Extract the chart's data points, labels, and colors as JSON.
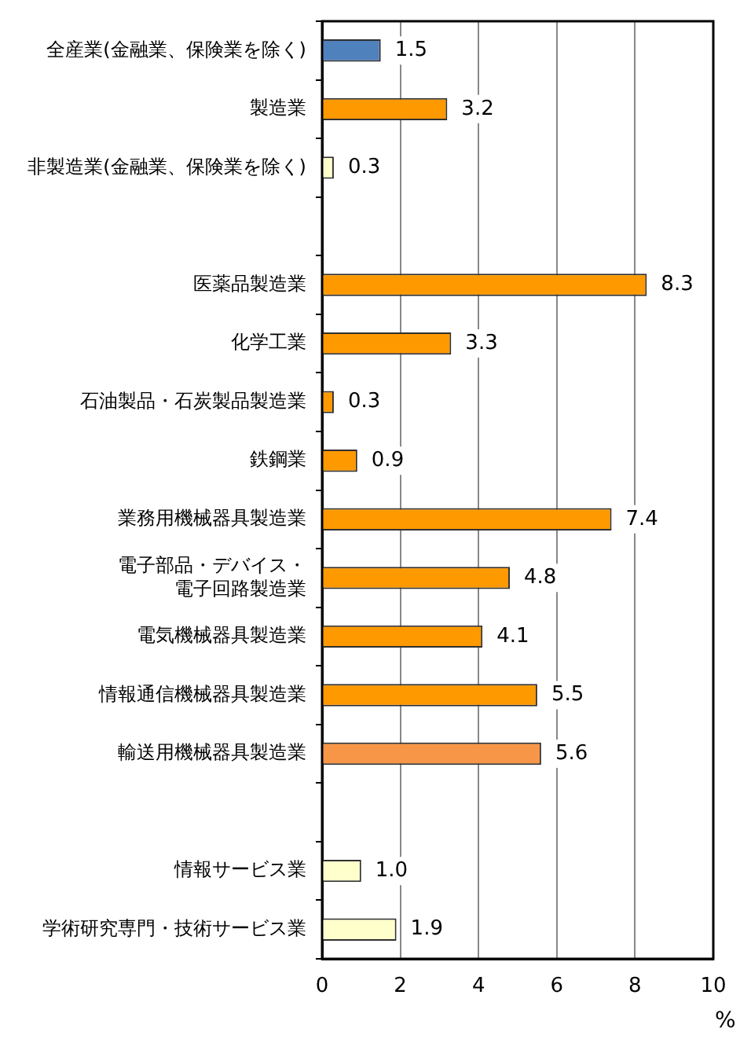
{
  "chart_data": {
    "type": "bar",
    "orientation": "horizontal",
    "categories": [
      "全産業(金融業、保険業を除く)",
      "製造業",
      "非製造業(金融業、保険業を除く)",
      null,
      "医薬品製造業",
      "化学工業",
      "石油製品・石炭製品製造業",
      "鉄鋼業",
      "業務用機械器具製造業",
      "電子部品・デバイス・電子回路製造業",
      "電気機械器具製造業",
      "情報通信機械器具製造業",
      "輸送用機械器具製造業",
      null,
      "情報サービス業",
      "学術研究専門・技術サービス業"
    ],
    "values": [
      1.5,
      3.2,
      0.3,
      null,
      8.3,
      3.3,
      0.3,
      0.9,
      7.4,
      4.8,
      4.1,
      5.5,
      5.6,
      null,
      1.0,
      1.9
    ],
    "colors": [
      "#4f81bd",
      "#ff9900",
      "#ffffcc",
      null,
      "#ff9900",
      "#ff9900",
      "#ff9900",
      "#ff9900",
      "#ff9900",
      "#ff9900",
      "#ff9900",
      "#ff9900",
      "#f79646",
      null,
      "#ffffcc",
      "#ffffcc"
    ],
    "value_labels": [
      "1.5",
      "3.2",
      "0.3",
      null,
      "8.3",
      "3.3",
      "0.3",
      "0.9",
      "7.4",
      "4.8",
      "4.1",
      "5.5",
      "5.6",
      null,
      "1.0",
      "1.9"
    ],
    "xlim": [
      0,
      10
    ],
    "xticks": [
      0,
      2,
      4,
      6,
      8,
      10
    ],
    "xlabel": "%",
    "grid": "x",
    "legend": false
  }
}
